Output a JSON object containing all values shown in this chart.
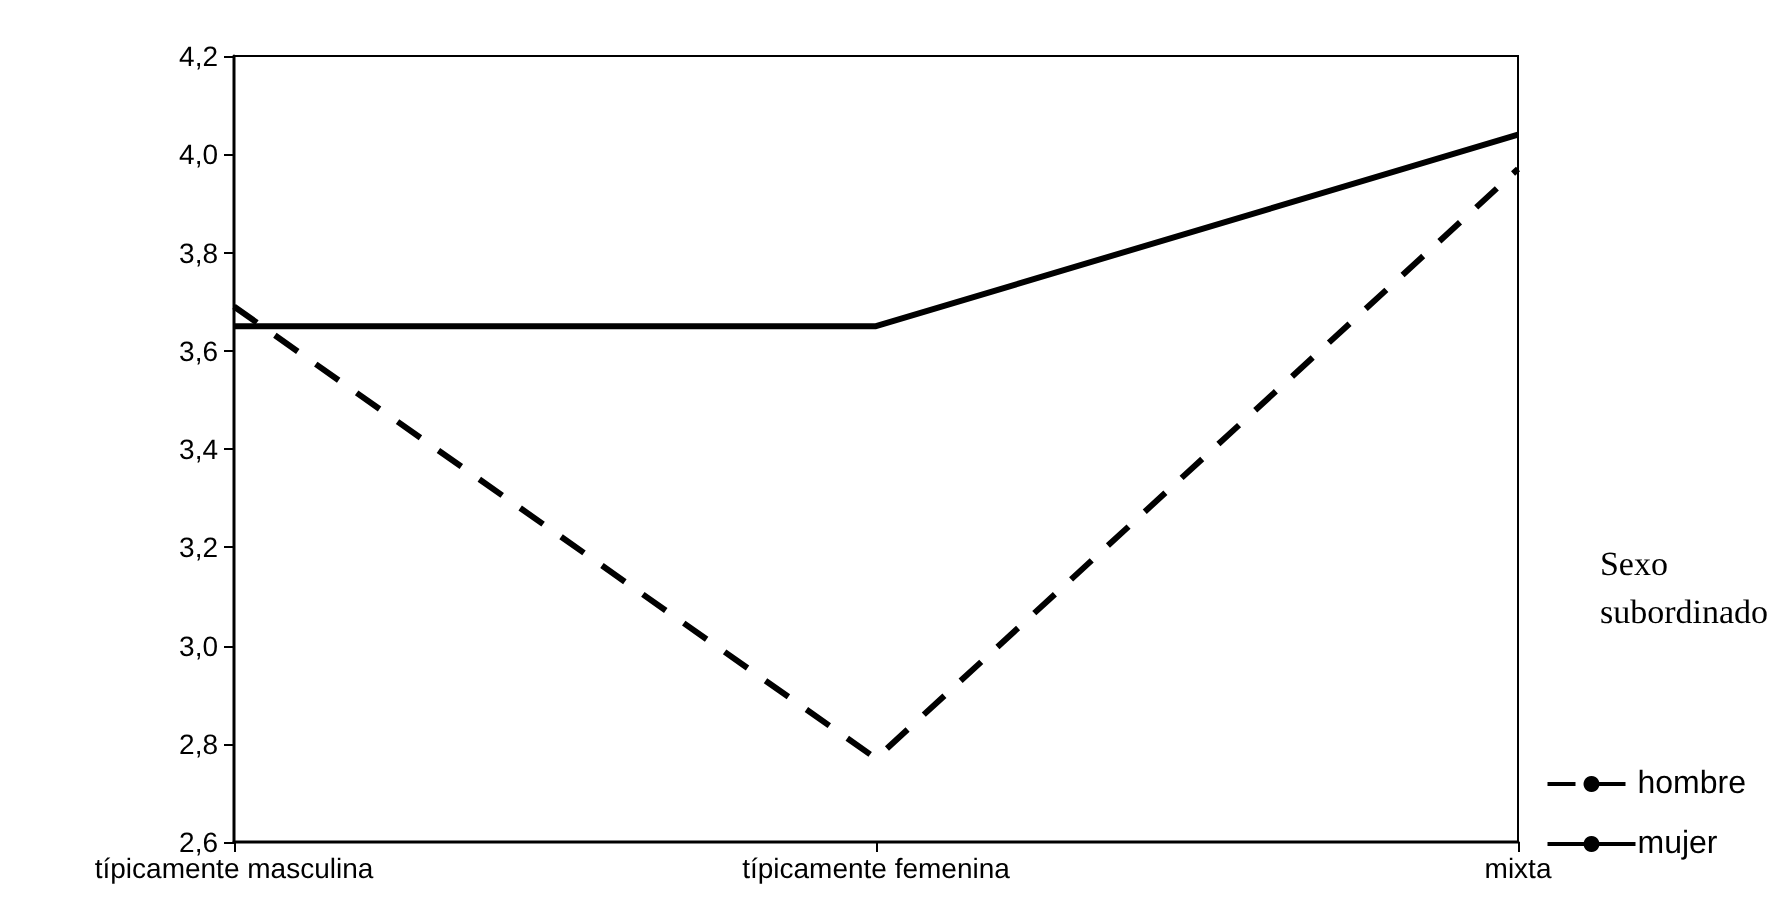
{
  "chart_data": {
    "type": "line",
    "categories": [
      "típicamente masculina",
      "típicamente femenina",
      "mixta"
    ],
    "series": [
      {
        "name": "hombre",
        "color": "#000000",
        "line_style": "dashed",
        "values": [
          3.69,
          2.77,
          3.97
        ]
      },
      {
        "name": "mujer",
        "color": "#000000",
        "line_style": "solid",
        "values": [
          3.65,
          3.65,
          4.04
        ]
      }
    ],
    "ylim": [
      2.6,
      4.2
    ],
    "yticks": [
      {
        "value": 2.6,
        "label": "2,6"
      },
      {
        "value": 2.8,
        "label": "2,8"
      },
      {
        "value": 3.0,
        "label": "3,0"
      },
      {
        "value": 3.2,
        "label": "3,2"
      },
      {
        "value": 3.4,
        "label": "3,4"
      },
      {
        "value": 3.6,
        "label": "3,6"
      },
      {
        "value": 3.8,
        "label": "3,8"
      },
      {
        "value": 4.0,
        "label": "4,0"
      },
      {
        "value": 4.2,
        "label": "4,2"
      }
    ],
    "legend_title": "Sexo subordinado",
    "legend": "bottom right",
    "marker": "none",
    "grid": false
  }
}
